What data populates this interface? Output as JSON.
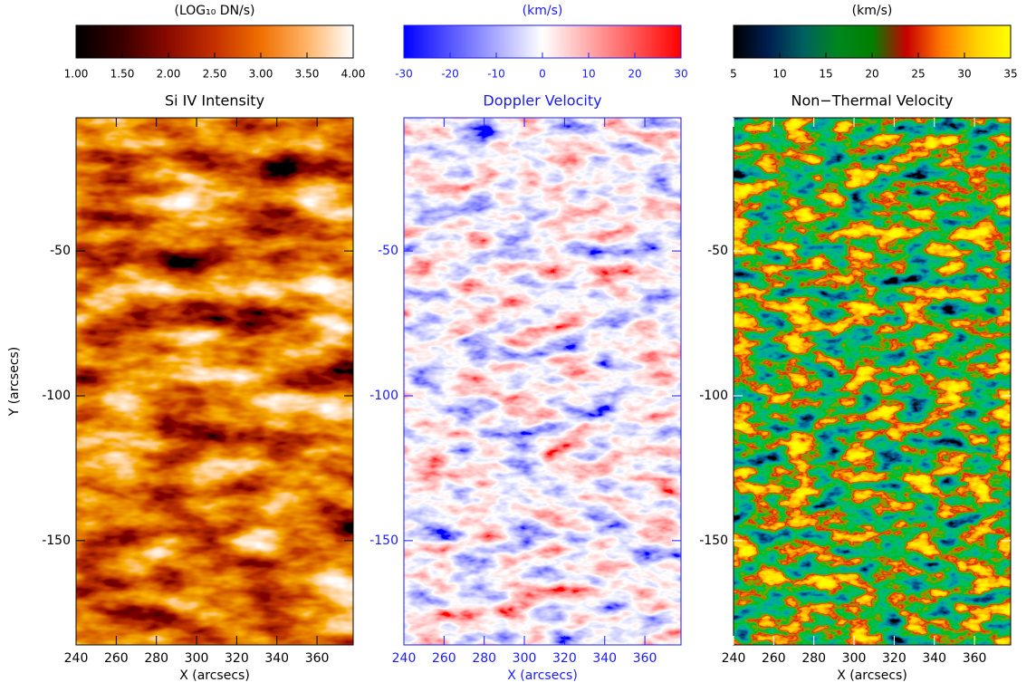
{
  "chart_data": [
    {
      "type": "image",
      "title": "Si IV Intensity",
      "colorbar_label": "(LOG₁₀ DN/s)",
      "colorbar_colors": [
        "#000000",
        "#3a0000",
        "#8a0a00",
        "#c43000",
        "#f07000",
        "#ffb468",
        "#ffffff"
      ],
      "clim": [
        1,
        4
      ],
      "cticks": [
        {
          "value": 1,
          "label": "1.00"
        },
        {
          "value": 1.5,
          "label": "1.50"
        },
        {
          "value": 2,
          "label": "2.00"
        },
        {
          "value": 2.5,
          "label": "2.50"
        },
        {
          "value": 3,
          "label": "3.00"
        },
        {
          "value": 3.5,
          "label": "3.50"
        },
        {
          "value": 4,
          "label": "4.00"
        }
      ],
      "text_color": "#000000",
      "xlabel": "X (arcsecs)",
      "xlim": [
        240,
        378
      ],
      "xticks": [
        240,
        260,
        280,
        300,
        320,
        340,
        360
      ],
      "ylabel": "Y (arcsecs)",
      "ylim": [
        -186,
        -4
      ],
      "yticks": [
        -50,
        -100,
        -150
      ]
    },
    {
      "type": "image",
      "title": "Doppler Velocity",
      "colorbar_label": "(km/s)",
      "colorbar_colors": [
        "#0000ff",
        "#ffffff",
        "#ff0000"
      ],
      "clim": [
        -30,
        30
      ],
      "cticks": [
        -30,
        -20,
        -10,
        0,
        10,
        20,
        30
      ],
      "text_color": "#1a1aff",
      "xlabel": "X (arcsecs)",
      "xlim": [
        240,
        378
      ],
      "xticks": [
        240,
        260,
        280,
        300,
        320,
        340,
        360
      ],
      "ylim": [
        -186,
        -4
      ],
      "yticks": [
        -50,
        -100,
        -150
      ]
    },
    {
      "type": "image",
      "title": "Non−Thermal Velocity",
      "colorbar_label": "(km/s)",
      "colorbar_colors": [
        "#000000",
        "#001e50",
        "#006060",
        "#00861e",
        "#008000",
        "#c80000",
        "#ff7800",
        "#ffd000",
        "#ffff00"
      ],
      "clim": [
        5,
        35
      ],
      "cticks": [
        5,
        10,
        15,
        20,
        25,
        30,
        35
      ],
      "text_color": "#000000",
      "xlabel": "X (arcsecs)",
      "xlim": [
        240,
        378
      ],
      "xticks": [
        240,
        260,
        280,
        300,
        320,
        340,
        360
      ],
      "ylim": [
        -186,
        -4
      ],
      "yticks": [
        -50,
        -100,
        -150
      ]
    }
  ]
}
